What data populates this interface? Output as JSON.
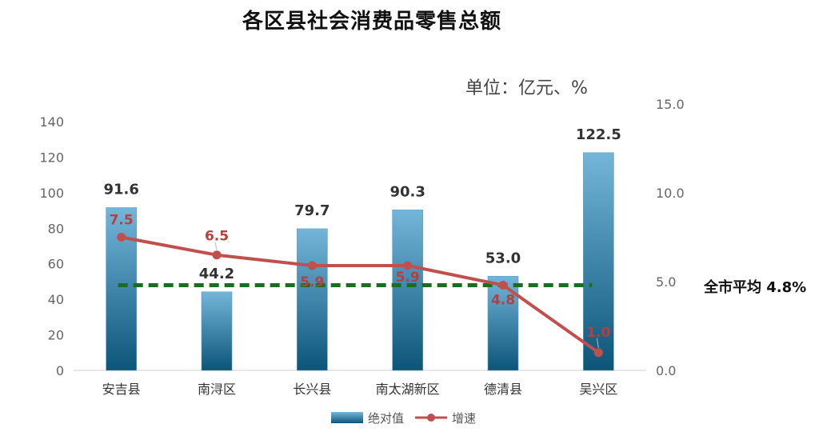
{
  "title": "各区县社会消费品零售总额",
  "unit_label": "单位：亿元、%",
  "average_label": "全市平均 4.8%",
  "legend": {
    "bar_label": "绝对值",
    "line_label": "增速"
  },
  "colors": {
    "bar_top": "#74b6da",
    "bar_bottom": "#0b5579",
    "line": "#c0504d",
    "avg_line": "#1e6b28",
    "axis_text": "#666666"
  },
  "chart_data": {
    "type": "bar",
    "title": "各区县社会消费品零售总额",
    "categories": [
      "安吉县",
      "南浔区",
      "长兴县",
      "南太湖新区",
      "德清县",
      "吴兴区"
    ],
    "series": [
      {
        "name": "绝对值",
        "type": "bar",
        "axis": "left",
        "values": [
          91.6,
          44.2,
          79.7,
          90.3,
          53.0,
          122.5
        ],
        "labels": [
          "91.6",
          "44.2",
          "79.7",
          "90.3",
          "53.0",
          "122.5"
        ]
      },
      {
        "name": "增速",
        "type": "line",
        "axis": "right",
        "values": [
          7.5,
          6.5,
          5.9,
          5.9,
          4.8,
          1.0
        ],
        "labels": [
          "7.5",
          "6.5",
          "5.9",
          "5.9",
          "4.8",
          "1.0"
        ]
      }
    ],
    "reference_line": {
      "value": 4.8,
      "axis": "right",
      "style": "dashed"
    },
    "y_left": {
      "range": [
        0,
        140
      ],
      "ticks": [
        "0",
        "20",
        "40",
        "60",
        "80",
        "100",
        "120",
        "140"
      ]
    },
    "y_right": {
      "range": [
        0,
        15
      ],
      "ticks": [
        "0.0",
        "5.0",
        "10.0",
        "15.0"
      ]
    },
    "grid": false,
    "legend_position": "bottom"
  }
}
